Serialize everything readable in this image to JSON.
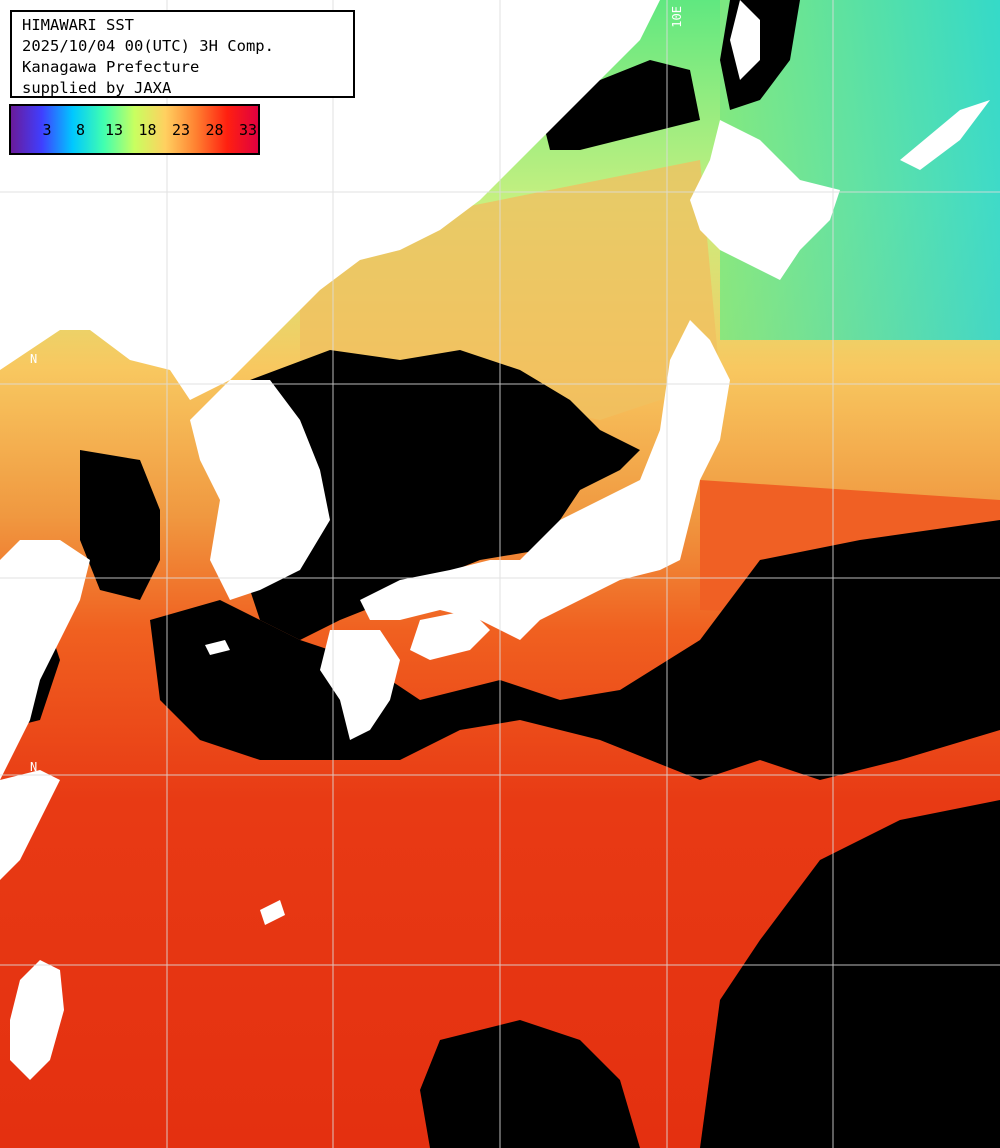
{
  "header": {
    "line1": "HIMAWARI SST",
    "line2": "2025/10/04 00(UTC) 3H Comp.",
    "line3": "Kanagawa Prefecture",
    "line4": "supplied by JAXA"
  },
  "legend": {
    "ticks": [
      "3",
      "8",
      "13",
      "18",
      "23",
      "28",
      "33"
    ],
    "colors": [
      "#6a1b9a",
      "#3f3fff",
      "#00c8ff",
      "#40ffb0",
      "#c8ff60",
      "#ffd060",
      "#ff8030",
      "#ff2010",
      "#e00040"
    ]
  },
  "grid_labels": {
    "top_lon": "10E",
    "left_lat_1": "N",
    "left_lat_2": "N"
  },
  "map": {
    "land_color": "#ffffff",
    "cloud_color": "#000000",
    "grid_color": "#dddddd"
  }
}
